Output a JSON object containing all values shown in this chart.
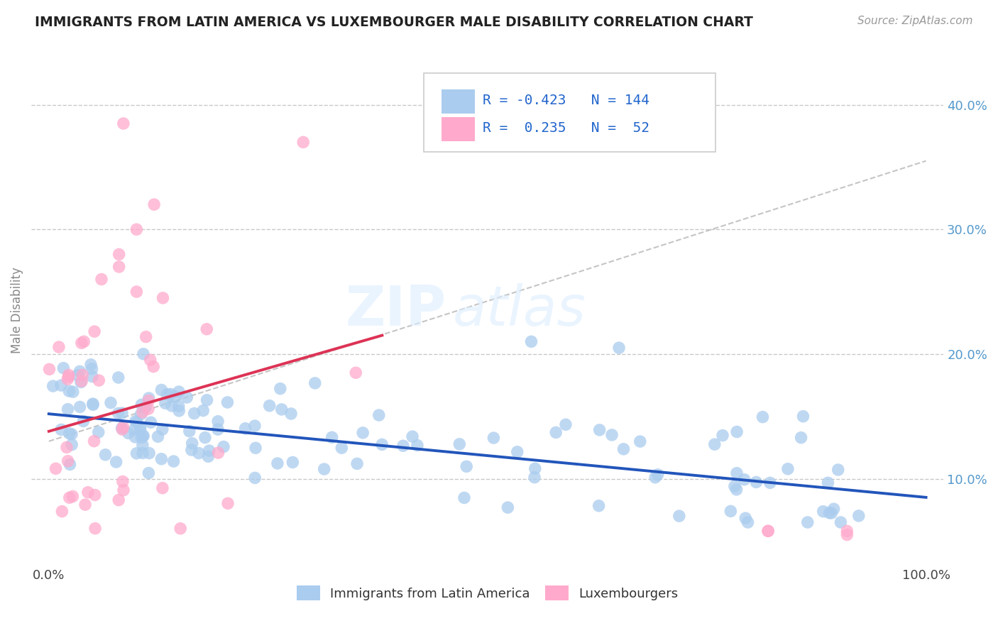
{
  "title": "IMMIGRANTS FROM LATIN AMERICA VS LUXEMBOURGER MALE DISABILITY CORRELATION CHART",
  "source": "Source: ZipAtlas.com",
  "ylabel": "Male Disability",
  "y_ticks": [
    0.1,
    0.2,
    0.3,
    0.4
  ],
  "y_tick_labels": [
    "10.0%",
    "20.0%",
    "30.0%",
    "40.0%"
  ],
  "x_lim": [
    -0.02,
    1.02
  ],
  "y_lim": [
    0.03,
    0.44
  ],
  "blue_R": -0.423,
  "blue_N": 144,
  "pink_R": 0.235,
  "pink_N": 52,
  "blue_color": "#AACCEE",
  "pink_color": "#FFAACC",
  "blue_line_color": "#2255BB",
  "pink_line_color": "#DD3355",
  "blue_label": "Immigrants from Latin America",
  "pink_label": "Luxembourgers",
  "watermark_zip": "ZIP",
  "watermark_atlas": "atlas",
  "background_color": "#FFFFFF",
  "grid_color": "#BBBBBB",
  "title_color": "#222222",
  "axis_label_color": "#888888",
  "tick_color": "#444444",
  "right_tick_color": "#5599CC",
  "source_color": "#999999"
}
